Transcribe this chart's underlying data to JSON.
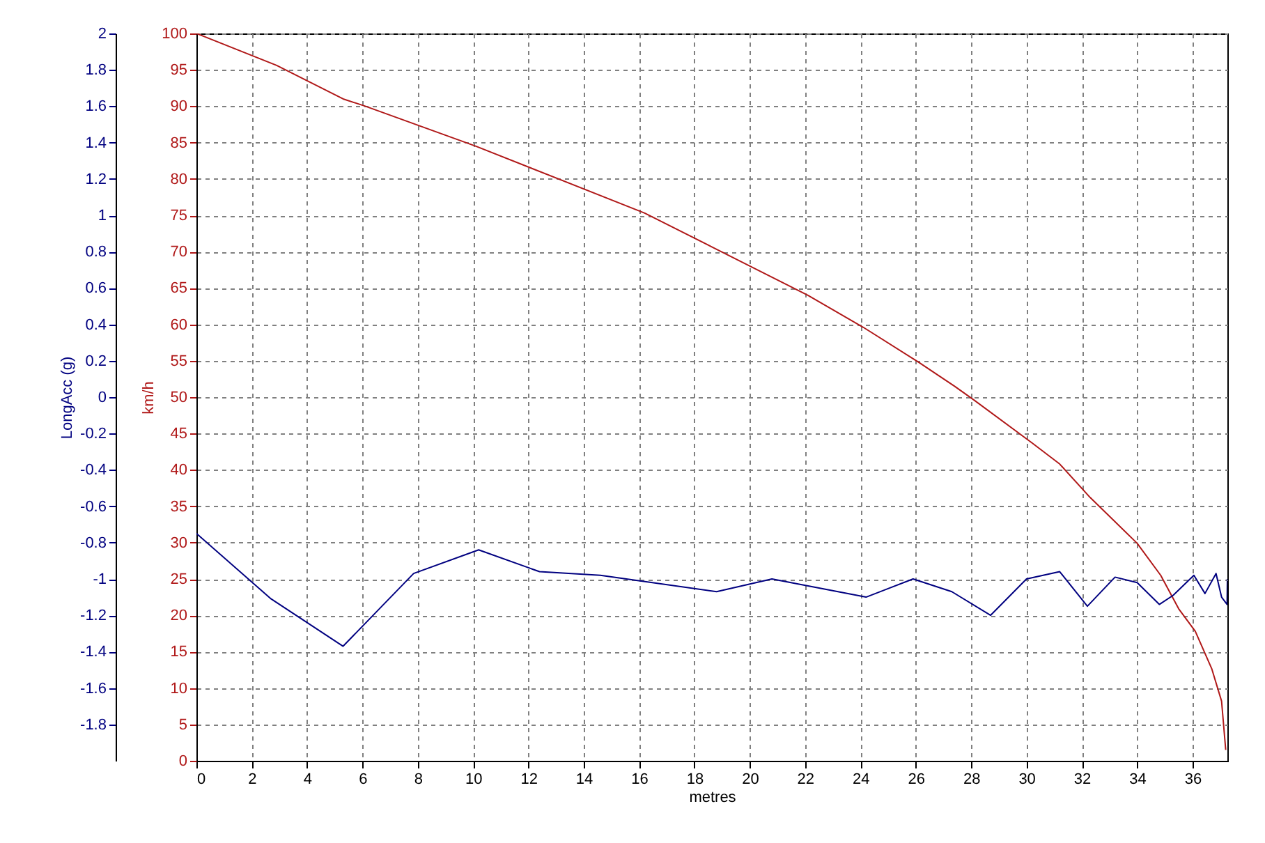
{
  "chart_data": {
    "type": "line",
    "xlabel": "metres",
    "ylabel": "km/h",
    "y2label": "LongAcc (g)",
    "xlim": [
      0,
      37.26
    ],
    "xticks": [
      0,
      2,
      4,
      6,
      8,
      10,
      12,
      14,
      16,
      18,
      20,
      22,
      24,
      26,
      28,
      30,
      32,
      34,
      36
    ],
    "ylim": [
      0,
      100
    ],
    "yticks": [
      0,
      5,
      10,
      15,
      20,
      25,
      30,
      35,
      40,
      45,
      50,
      55,
      60,
      65,
      70,
      75,
      80,
      85,
      90,
      95,
      100
    ],
    "y2lim": [
      -2,
      2
    ],
    "y2ticks": [
      -1.8,
      -1.6,
      -1.4,
      -1.2,
      -1,
      -0.8,
      -0.6,
      -0.4,
      -0.2,
      0,
      0.2,
      0.4,
      0.6,
      0.8,
      1,
      1.2,
      1.4,
      1.6,
      1.8,
      2
    ],
    "grid": true,
    "line_style": "solid",
    "series": [
      {
        "color": "#b01818",
        "x": [
          0,
          2.9,
          5.3,
          6.1,
          10.1,
          16.2,
          18.6,
          22.1,
          24.1,
          26.1,
          27.4,
          28.1,
          30.2,
          31.2,
          32.3,
          34,
          34.85,
          35.5,
          36.1,
          36.7,
          37.05,
          37.2
        ],
        "values": [
          100,
          95.6,
          91,
          90,
          84.5,
          75.3,
          70.7,
          64,
          59.6,
          54.8,
          51.5,
          49.6,
          43.7,
          40.8,
          36.2,
          29.9,
          25.5,
          20.9,
          17.8,
          12.6,
          8.2,
          1.5
        ]
      },
      {
        "color": "#000080",
        "axis": "y2",
        "x": [
          0,
          2.7,
          5.3,
          7.85,
          10.2,
          12.4,
          14.6,
          18.8,
          20.8,
          24.2,
          25.9,
          27.3,
          28.7,
          30,
          31.2,
          32.2,
          33.2,
          34,
          34.8,
          35.3,
          36.05,
          36.45,
          36.85,
          37.05,
          37.25,
          37.26
        ],
        "values": [
          -0.75,
          -1.11,
          -1.37,
          -0.97,
          -0.84,
          -0.96,
          -0.98,
          -1.07,
          -1.0,
          -1.1,
          -1.0,
          -1.07,
          -1.2,
          -1.0,
          -0.96,
          -1.15,
          -0.99,
          -1.02,
          -1.14,
          -1.09,
          -0.98,
          -1.08,
          -0.97,
          -1.1,
          -1.14,
          -1.0
        ]
      }
    ]
  }
}
